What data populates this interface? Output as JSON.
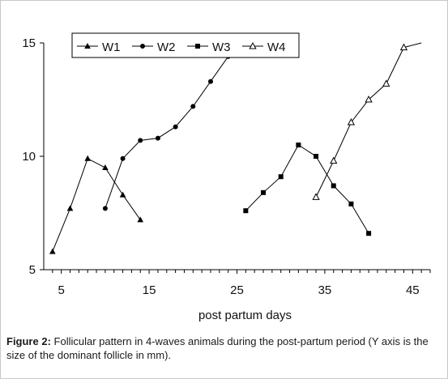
{
  "chart_data": {
    "type": "line",
    "title": "",
    "xlabel": "post partum days",
    "ylabel": "",
    "xlim": [
      3,
      47
    ],
    "ylim": [
      5,
      15
    ],
    "xticks": [
      5,
      15,
      25,
      35,
      45
    ],
    "yticks": [
      5,
      10,
      15
    ],
    "grid": false,
    "legend_position": "top",
    "series": [
      {
        "name": "W1",
        "marker": "triangle",
        "x": [
          4,
          6,
          8,
          10,
          12,
          14
        ],
        "y": [
          5.8,
          7.7,
          9.9,
          9.5,
          8.3,
          7.2
        ]
      },
      {
        "name": "W2",
        "marker": "circle",
        "x": [
          10,
          12,
          14,
          16,
          18,
          20,
          22,
          24
        ],
        "y": [
          7.7,
          9.9,
          10.7,
          10.8,
          11.3,
          12.2,
          13.3,
          14.4
        ]
      },
      {
        "name": "W3",
        "marker": "square",
        "x": [
          26,
          28,
          30,
          32,
          34,
          36,
          38,
          40
        ],
        "y": [
          7.6,
          8.4,
          9.1,
          10.5,
          10,
          8.7,
          7.9,
          6.6
        ]
      },
      {
        "name": "W4",
        "marker": "open-triangle",
        "x": [
          34,
          36,
          38,
          40,
          42,
          44,
          46
        ],
        "y": [
          8.2,
          9.8,
          11.5,
          12.5,
          13.2,
          14.8,
          15.2
        ]
      }
    ]
  },
  "caption": {
    "lead": "Figure 2:",
    "text": " Follicular pattern in 4-waves animals during the post-partum period (Y axis is the size of the dominant follicle in mm)."
  }
}
